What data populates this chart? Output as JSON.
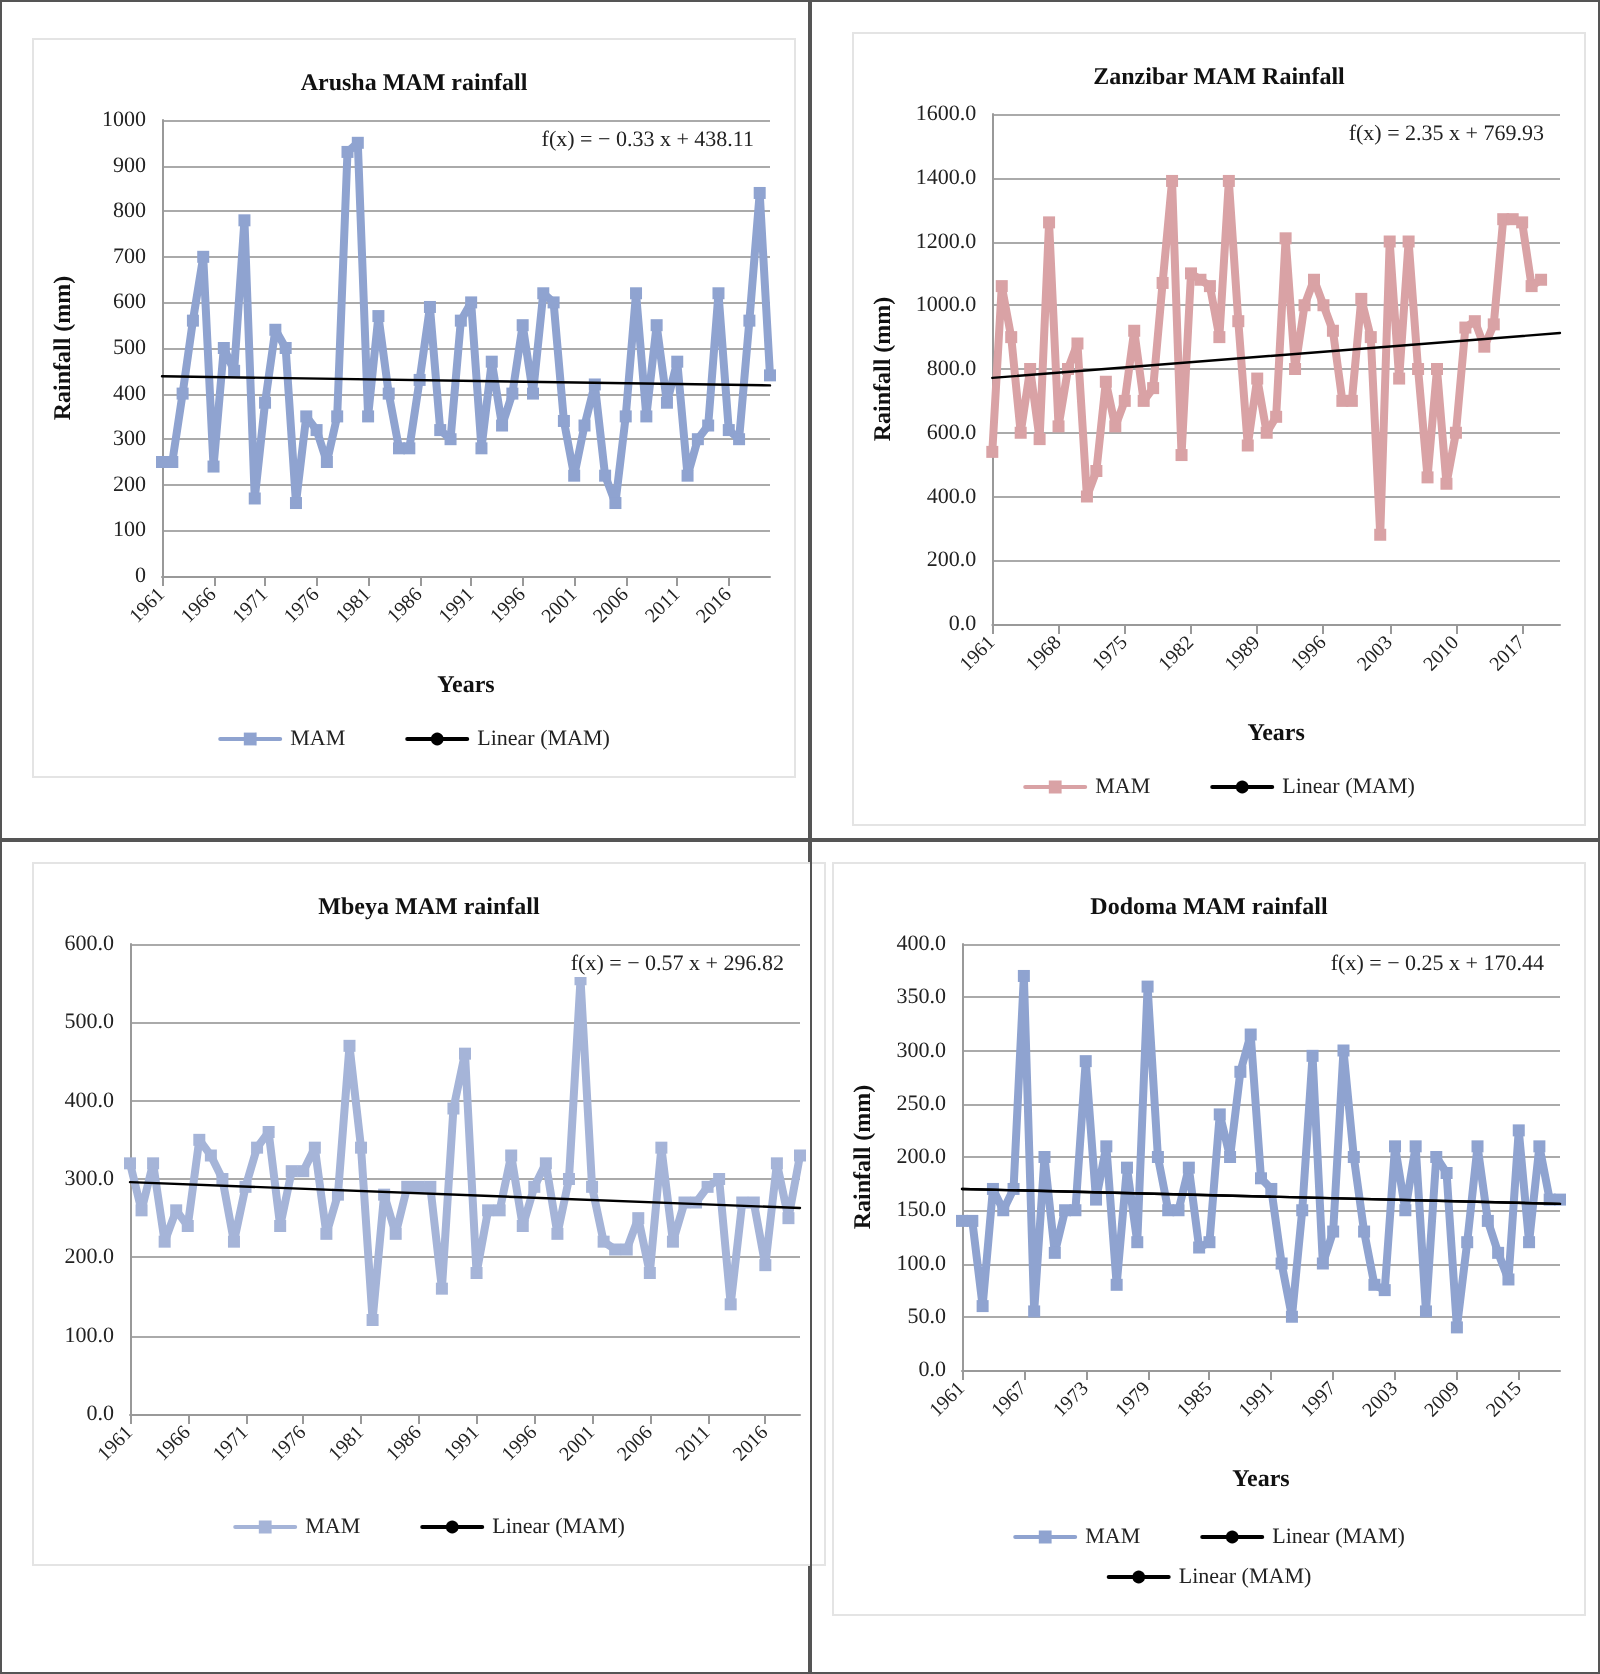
{
  "chart_data": [
    {
      "type": "line",
      "title": "Arusha MAM rainfall",
      "xlabel": "Years",
      "ylabel": "Rainfall (mm)",
      "grid": "y",
      "legend": "bottom",
      "xlim": [
        1961,
        2020
      ],
      "xticks": [
        1961,
        1966,
        1971,
        1976,
        1981,
        1986,
        1991,
        1996,
        2001,
        2006,
        2011,
        2016
      ],
      "ylim": [
        0,
        1000
      ],
      "yticks": [
        0,
        100,
        200,
        300,
        400,
        500,
        600,
        700,
        800,
        900,
        1000
      ],
      "x": [
        1961,
        1962,
        1963,
        1964,
        1965,
        1966,
        1967,
        1968,
        1969,
        1970,
        1971,
        1972,
        1973,
        1974,
        1975,
        1976,
        1977,
        1978,
        1979,
        1980,
        1981,
        1982,
        1983,
        1984,
        1985,
        1986,
        1987,
        1988,
        1989,
        1990,
        1991,
        1992,
        1993,
        1994,
        1995,
        1996,
        1997,
        1998,
        1999,
        2000,
        2001,
        2002,
        2003,
        2004,
        2005,
        2006,
        2007,
        2008,
        2009,
        2010,
        2011,
        2012,
        2013,
        2014,
        2015,
        2016,
        2017,
        2018,
        2019,
        2020
      ],
      "series": [
        {
          "name": "MAM",
          "color": "#8fa3d0",
          "marker": "square",
          "values": [
            250,
            250,
            400,
            560,
            700,
            240,
            500,
            450,
            780,
            170,
            380,
            540,
            500,
            160,
            350,
            320,
            250,
            350,
            930,
            950,
            350,
            570,
            400,
            280,
            280,
            430,
            590,
            320,
            300,
            560,
            600,
            280,
            470,
            330,
            400,
            550,
            400,
            620,
            600,
            340,
            220,
            330,
            420,
            220,
            160,
            350,
            620,
            350,
            550,
            380,
            470,
            220,
            300,
            330,
            620,
            320,
            300,
            560,
            840,
            440
          ]
        },
        {
          "name": "Linear (MAM)",
          "color": "#000000",
          "marker": "none",
          "x": [
            1961,
            2020
          ],
          "values": [
            438,
            418
          ]
        }
      ],
      "annotations": [
        "f(x) = − 0.33 x + 438.11"
      ]
    },
    {
      "type": "line",
      "title": "Zanzibar MAM Rainfall",
      "xlabel": "Years",
      "ylabel": "Rainfall (mm)",
      "grid": "y",
      "legend": "bottom",
      "xlim": [
        1961,
        2021
      ],
      "xticks": [
        1961,
        1968,
        1975,
        1982,
        1989,
        1996,
        2003,
        2010,
        2017
      ],
      "ylim": [
        0,
        1600
      ],
      "yticks": [
        {
          "value": 0,
          "label": "0.0"
        },
        {
          "value": 200,
          "label": "200.0"
        },
        {
          "value": 400,
          "label": "400.0"
        },
        {
          "value": 600,
          "label": "600.0"
        },
        {
          "value": 800,
          "label": "800.0"
        },
        {
          "value": 1000,
          "label": "1000.0"
        },
        {
          "value": 1200,
          "label": "1200.0"
        },
        {
          "value": 1400,
          "label": "1400.0"
        },
        {
          "value": 1600,
          "label": "1600.0"
        }
      ],
      "x": [
        1961,
        1962,
        1963,
        1964,
        1965,
        1966,
        1967,
        1968,
        1969,
        1970,
        1971,
        1972,
        1973,
        1974,
        1975,
        1976,
        1977,
        1978,
        1979,
        1980,
        1981,
        1982,
        1983,
        1984,
        1985,
        1986,
        1987,
        1988,
        1989,
        1990,
        1991,
        1992,
        1993,
        1994,
        1995,
        1996,
        1997,
        1998,
        1999,
        2000,
        2001,
        2002,
        2003,
        2004,
        2005,
        2006,
        2007,
        2008,
        2009,
        2010,
        2011,
        2012,
        2013,
        2014,
        2015,
        2016,
        2017,
        2018,
        2019
      ],
      "series": [
        {
          "name": "MAM",
          "color": "#d9a2a5",
          "marker": "square",
          "values": [
            540,
            1060,
            900,
            600,
            800,
            580,
            1260,
            620,
            800,
            880,
            400,
            480,
            760,
            620,
            700,
            920,
            700,
            740,
            1070,
            1390,
            530,
            1100,
            1080,
            1060,
            900,
            1390,
            950,
            560,
            770,
            600,
            650,
            1210,
            800,
            1000,
            1080,
            1000,
            920,
            700,
            700,
            1020,
            900,
            280,
            1200,
            770,
            1200,
            800,
            460,
            800,
            440,
            600,
            930,
            950,
            870,
            940,
            1270,
            1270,
            1260,
            1060,
            1080
          ]
        },
        {
          "name": "Linear (MAM)",
          "color": "#000000",
          "marker": "none",
          "x": [
            1961,
            2021
          ],
          "values": [
            772,
            913
          ]
        }
      ],
      "annotations": [
        "f(x) = 2.35 x + 769.93"
      ]
    },
    {
      "type": "line",
      "title": "Mbeya MAM rainfall",
      "grid": "y",
      "legend": "bottom",
      "xlim": [
        1961,
        2019
      ],
      "xticks": [
        1961,
        1966,
        1971,
        1976,
        1981,
        1986,
        1991,
        1996,
        2001,
        2006,
        2011,
        2016
      ],
      "ylim": [
        0,
        600
      ],
      "yticks": [
        {
          "value": 0,
          "label": "0.0"
        },
        {
          "value": 100,
          "label": "100.0"
        },
        {
          "value": 200,
          "label": "200.0"
        },
        {
          "value": 300,
          "label": "300.0"
        },
        {
          "value": 400,
          "label": "400.0"
        },
        {
          "value": 500,
          "label": "500.0"
        },
        {
          "value": 600,
          "label": "600.0"
        }
      ],
      "x": [
        1961,
        1962,
        1963,
        1964,
        1965,
        1966,
        1967,
        1968,
        1969,
        1970,
        1971,
        1972,
        1973,
        1974,
        1975,
        1976,
        1977,
        1978,
        1979,
        1980,
        1981,
        1982,
        1983,
        1984,
        1985,
        1986,
        1987,
        1988,
        1989,
        1990,
        1991,
        1992,
        1993,
        1994,
        1995,
        1996,
        1997,
        1998,
        1999,
        2000,
        2001,
        2002,
        2003,
        2004,
        2005,
        2006,
        2007,
        2008,
        2009,
        2010,
        2011,
        2012,
        2013,
        2014,
        2015,
        2016,
        2017,
        2018,
        2019
      ],
      "series": [
        {
          "name": "MAM",
          "color": "#a5b4d8",
          "marker": "square",
          "values": [
            320,
            260,
            320,
            220,
            260,
            240,
            350,
            330,
            300,
            220,
            290,
            340,
            360,
            240,
            310,
            310,
            340,
            230,
            280,
            470,
            340,
            120,
            280,
            230,
            290,
            290,
            290,
            160,
            390,
            460,
            180,
            260,
            260,
            330,
            240,
            290,
            320,
            230,
            300,
            555,
            290,
            220,
            210,
            210,
            250,
            180,
            340,
            220,
            270,
            270,
            290,
            300,
            140,
            270,
            270,
            190,
            320,
            250,
            330
          ]
        },
        {
          "name": "Linear (MAM)",
          "color": "#000000",
          "marker": "none",
          "x": [
            1961,
            2019
          ],
          "values": [
            296,
            263
          ]
        }
      ],
      "annotations": [
        "f(x) = − 0.57 x + 296.82"
      ]
    },
    {
      "type": "line",
      "title": "Dodoma MAM rainfall",
      "xlabel": "Years",
      "ylabel": "Rainfall (mm)",
      "grid": "y",
      "legend": "bottom",
      "xlim": [
        1961,
        2019
      ],
      "xticks": [
        1961,
        1967,
        1973,
        1979,
        1985,
        1991,
        1997,
        2003,
        2009,
        2015
      ],
      "ylim": [
        0,
        400
      ],
      "yticks": [
        {
          "value": 0,
          "label": "0.0"
        },
        {
          "value": 50,
          "label": "50.0"
        },
        {
          "value": 100,
          "label": "100.0"
        },
        {
          "value": 150,
          "label": "150.0"
        },
        {
          "value": 200,
          "label": "200.0"
        },
        {
          "value": 250,
          "label": "250.0"
        },
        {
          "value": 300,
          "label": "300.0"
        },
        {
          "value": 350,
          "label": "350.0"
        },
        {
          "value": 400,
          "label": "400.0"
        }
      ],
      "x": [
        1961,
        1962,
        1963,
        1964,
        1965,
        1966,
        1967,
        1968,
        1969,
        1970,
        1971,
        1972,
        1973,
        1974,
        1975,
        1976,
        1977,
        1978,
        1979,
        1980,
        1981,
        1982,
        1983,
        1984,
        1985,
        1986,
        1987,
        1988,
        1989,
        1990,
        1991,
        1992,
        1993,
        1994,
        1995,
        1996,
        1997,
        1998,
        1999,
        2000,
        2001,
        2002,
        2003,
        2004,
        2005,
        2006,
        2007,
        2008,
        2009,
        2010,
        2011,
        2012,
        2013,
        2014,
        2015,
        2016,
        2017,
        2018,
        2019
      ],
      "series": [
        {
          "name": "MAM",
          "color": "#8fa3d0",
          "marker": "square",
          "values": [
            140,
            140,
            60,
            170,
            150,
            170,
            370,
            55,
            200,
            110,
            150,
            150,
            290,
            160,
            210,
            80,
            190,
            120,
            360,
            200,
            150,
            150,
            190,
            115,
            120,
            240,
            200,
            280,
            315,
            180,
            170,
            100,
            50,
            150,
            295,
            100,
            130,
            300,
            200,
            130,
            80,
            75,
            210,
            150,
            210,
            55,
            200,
            185,
            40,
            120,
            210,
            140,
            110,
            85,
            225,
            120,
            210,
            160,
            160
          ]
        },
        {
          "name": "Linear (MAM)",
          "color": "#000000",
          "marker": "none",
          "x": [
            1961,
            2019
          ],
          "values": [
            170,
            156
          ]
        },
        {
          "name": "Linear (MAM)",
          "color": "#000000",
          "marker": "none",
          "x": [
            1961,
            2019
          ],
          "values": [
            170,
            156
          ]
        }
      ],
      "annotations": [
        "f(x) = − 0.25 x + 170.44"
      ]
    }
  ]
}
